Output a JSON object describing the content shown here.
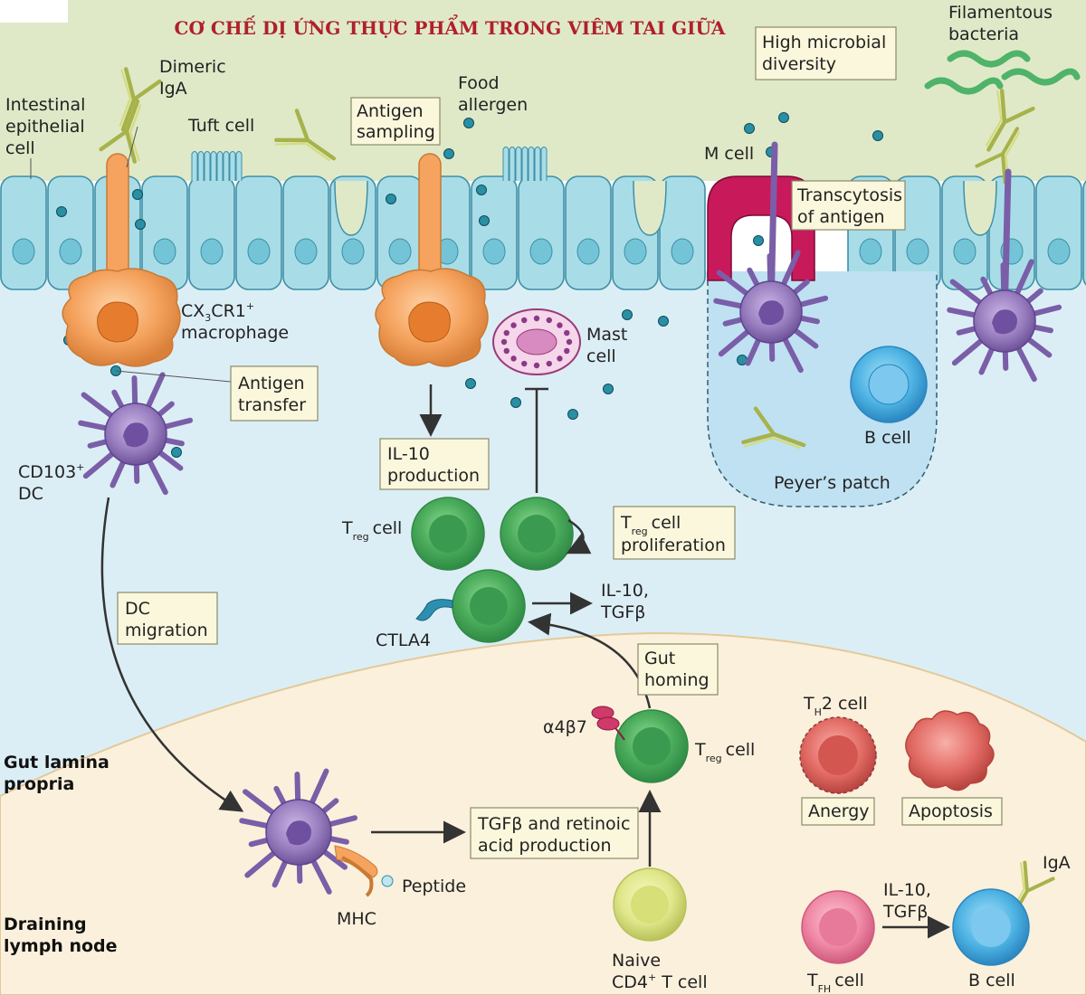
{
  "title": "CƠ CHẾ DỊ ỨNG THỰC PHẨM TRONG VIÊM TAI GIỮA",
  "regions": {
    "lamina_propria": "Gut lamina propria",
    "lamina_propria_l1": "Gut lamina",
    "lamina_propria_l2": "propria",
    "lymph_node_l1": "Draining",
    "lymph_node_l2": "lymph node"
  },
  "labels": {
    "intestinal_l1": "Intestinal",
    "intestinal_l2": "epithelial",
    "intestinal_l3": "cell",
    "dimeric_l1": "Dimeric",
    "dimeric_l2": "IgA",
    "tuft_cell": "Tuft cell",
    "food_l1": "Food",
    "food_l2": "allergen",
    "m_cell": "M cell",
    "filamentous_l1": "Filamentous",
    "filamentous_l2": "bacteria",
    "cx3cr1_main": "CX",
    "cx3cr1_sub": "3",
    "cx3cr1_rest": "CR1",
    "cx3cr1_sup": "+",
    "macrophage": "macrophage",
    "mast_l1": "Mast",
    "mast_l2": "cell",
    "b_cell_patch": "B cell",
    "peyers_patch": "Peyer’s patch",
    "cd103_main": "CD103",
    "cd103_sup": "+",
    "dc": "DC",
    "treg_t": "T",
    "treg_sub": "reg",
    "treg_cell": "cell",
    "ctla4": "CTLA4",
    "il10_l1": "IL-10,",
    "il10_l2": "TGFβ",
    "a4b7": "α4β7",
    "treg2_t": "T",
    "treg2_sub": "reg",
    "treg2_cell": "cell",
    "th2_t": "T",
    "th2_sub": "H",
    "th2_rest": "2 cell",
    "peptide": "Peptide",
    "mhc": "MHC",
    "naive_l1": "Naive",
    "naive_l2_a": "CD4",
    "naive_l2_sup": "+",
    "naive_l2_b": " T cell",
    "il10b_l1": "IL-10,",
    "il10b_l2": "TGFβ",
    "tfh_t": "T",
    "tfh_sub": "FH",
    "tfh_cell": "cell",
    "b_cell_ln": "B cell",
    "iga": "IgA"
  },
  "boxes": {
    "high_microbial_l1": "High microbial",
    "high_microbial_l2": "diversity",
    "antigen_sampling_l1": "Antigen",
    "antigen_sampling_l2": "sampling",
    "transcytosis_l1": "Transcytosis",
    "transcytosis_l2": "of antigen",
    "antigen_transfer_l1": "Antigen",
    "antigen_transfer_l2": "transfer",
    "il10_prod_l1": "IL-10",
    "il10_prod_l2": "production",
    "treg_prolif_t": "T",
    "treg_prolif_sub": "reg",
    "treg_prolif_cell": "cell",
    "treg_prolif_l2": "proliferation",
    "dc_migration_l1": "DC",
    "dc_migration_l2": "migration",
    "gut_homing_l1": "Gut",
    "gut_homing_l2": "homing",
    "tgfb_l1": "TGFβ and retinoic",
    "tgfb_l2": "acid production",
    "anergy": "Anergy",
    "apoptosis": "Apoptosis"
  },
  "icons": [
    "iga-antibody-icon",
    "bacteria-icon",
    "dendritic-cell-icon",
    "macrophage-icon",
    "mast-cell-icon",
    "t-cell-icon",
    "b-cell-icon"
  ],
  "colors": {
    "title": "#b0202a",
    "lumen": "#dfe9c8",
    "epithelium": "#a8dde8",
    "lamina": "#dceef5",
    "lymph": "#fbf0db",
    "treg": "#5cbf6a",
    "dc": "#9a7fc0",
    "macrophage": "#f2a15c",
    "m_cell": "#c8195a",
    "naive": "#e4ec88",
    "th2": "#e56b6b",
    "tfh": "#f08aa6",
    "b_cell": "#4fb7e6",
    "box_fill": "#fbf7dc"
  }
}
